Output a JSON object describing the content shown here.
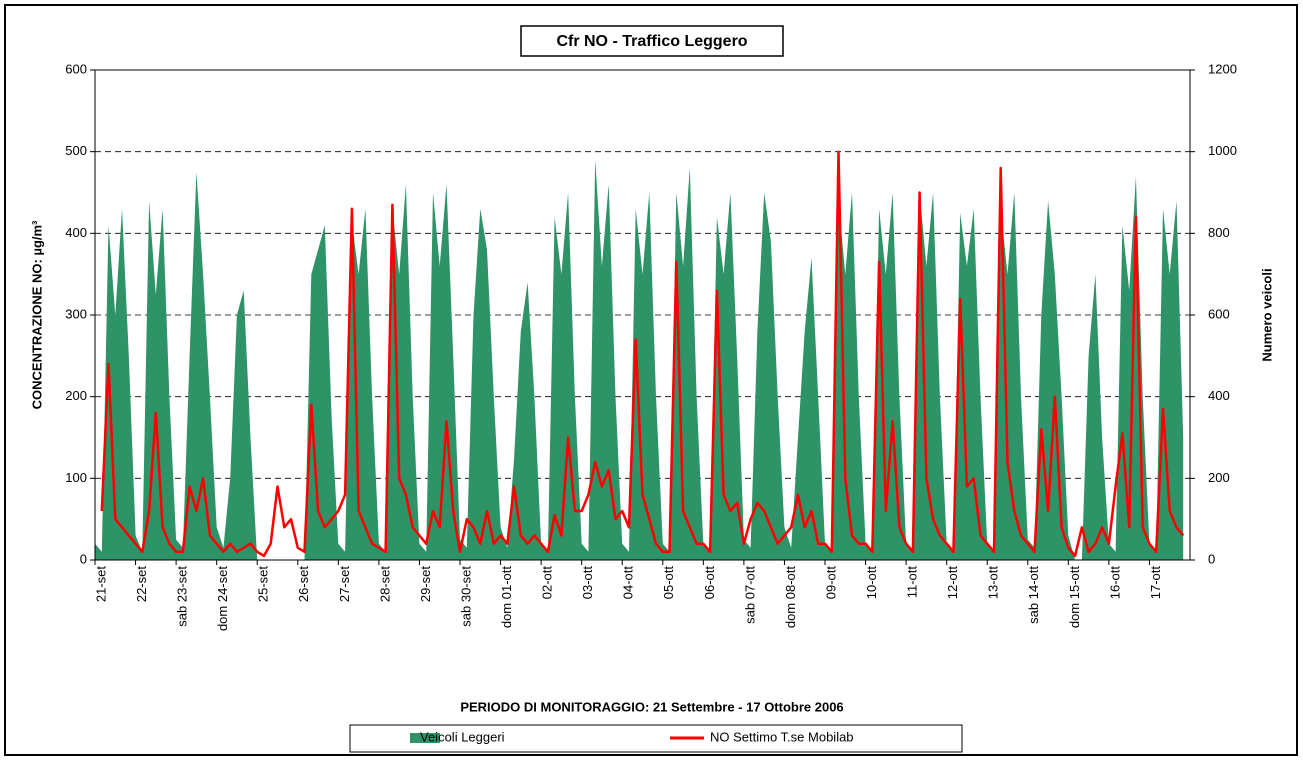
{
  "chart_data": {
    "type": "combo",
    "title": "Cfr NO - Traffico Leggero",
    "xlabel": "PERIODO DI MONITORAGGIO: 21 Settembre - 17 Ottobre 2006",
    "ylabel": "CONCENTRAZIONE NO:  µg/m³",
    "y2label": "Numero veicoli",
    "categories": [
      "21-set",
      "22-set",
      "sab 23-set",
      "dom 24-set",
      "25-set",
      "26-set",
      "27-set",
      "28-set",
      "29-set",
      "sab 30-set",
      "dom 01-ott",
      "02-ott",
      "03-ott",
      "04-ott",
      "05-ott",
      "06-ott",
      "sab 07-ott",
      "dom 08-ott",
      "09-ott",
      "10-ott",
      "11-ott",
      "12-ott",
      "13-ott",
      "sab 14-ott",
      "dom 15-ott",
      "16-ott",
      "17-ott"
    ],
    "ylim": [
      0,
      600
    ],
    "yticks": [
      0,
      100,
      200,
      300,
      400,
      500,
      600
    ],
    "y2lim": [
      0,
      1200
    ],
    "y2ticks": [
      0,
      200,
      400,
      600,
      800,
      1000,
      1200
    ],
    "grid": true,
    "series": [
      {
        "name": "Veicoli Leggeri",
        "type": "area",
        "axis": "y2",
        "color": "#2e9468",
        "values": [
          [
            40,
            20,
            820,
            600,
            860,
            500
          ],
          [
            60,
            20,
            880,
            650,
            860,
            400
          ],
          [
            50,
            30,
            500,
            950,
            700,
            400
          ],
          [
            80,
            30,
            200,
            600,
            660,
            300
          ],
          [
            0,
            0,
            0,
            0,
            0,
            0
          ],
          [
            0,
            0,
            700,
            760,
            820,
            350
          ],
          [
            40,
            20,
            830,
            700,
            860,
            400
          ],
          [
            40,
            20,
            860,
            700,
            920,
            400
          ],
          [
            40,
            20,
            900,
            720,
            920,
            500
          ],
          [
            50,
            30,
            600,
            860,
            760,
            400
          ],
          [
            80,
            30,
            250,
            560,
            680,
            400
          ],
          [
            40,
            20,
            840,
            700,
            900,
            400
          ],
          [
            40,
            20,
            980,
            720,
            920,
            400
          ],
          [
            40,
            20,
            860,
            700,
            900,
            400
          ],
          [
            40,
            20,
            900,
            720,
            960,
            400
          ],
          [
            40,
            20,
            840,
            700,
            900,
            500
          ],
          [
            50,
            30,
            560,
            900,
            780,
            400
          ],
          [
            80,
            30,
            300,
            560,
            740,
            400
          ],
          [
            40,
            20,
            880,
            700,
            900,
            400
          ],
          [
            40,
            20,
            860,
            700,
            900,
            400
          ],
          [
            40,
            20,
            900,
            720,
            900,
            400
          ],
          [
            40,
            20,
            850,
            720,
            860,
            400
          ],
          [
            40,
            20,
            860,
            700,
            900,
            400
          ],
          [
            50,
            30,
            600,
            880,
            700,
            400
          ],
          [
            60,
            0,
            0,
            500,
            700,
            300
          ],
          [
            40,
            20,
            820,
            660,
            940,
            400
          ],
          [
            40,
            20,
            860,
            700,
            880,
            300
          ]
        ]
      },
      {
        "name": "NO Settimo T.se Mobilab",
        "type": "line",
        "color": "#ff0000",
        "values": [
          [
            null,
            60,
            240,
            50,
            40,
            30
          ],
          [
            20,
            10,
            60,
            180,
            40,
            20
          ],
          [
            10,
            10,
            90,
            60,
            100,
            30
          ],
          [
            20,
            10,
            20,
            10,
            15,
            20
          ],
          [
            10,
            5,
            20,
            90,
            40,
            50
          ],
          [
            15,
            10,
            190,
            60,
            40,
            50
          ],
          [
            60,
            80,
            430,
            60,
            40,
            20
          ],
          [
            15,
            10,
            435,
            100,
            80,
            40
          ],
          [
            30,
            20,
            60,
            40,
            170,
            60
          ],
          [
            10,
            50,
            40,
            20,
            60,
            20
          ],
          [
            30,
            20,
            90,
            30,
            20,
            30
          ],
          [
            20,
            10,
            55,
            30,
            150,
            60
          ],
          [
            60,
            80,
            120,
            90,
            110,
            50
          ],
          [
            60,
            40,
            270,
            80,
            50,
            20
          ],
          [
            10,
            10,
            365,
            60,
            40,
            20
          ],
          [
            20,
            10,
            330,
            80,
            60,
            70
          ],
          [
            20,
            50,
            70,
            60,
            40,
            20
          ],
          [
            30,
            40,
            80,
            40,
            60,
            20
          ],
          [
            20,
            10,
            500,
            100,
            30,
            20
          ],
          [
            20,
            10,
            365,
            60,
            170,
            40
          ],
          [
            20,
            10,
            450,
            100,
            50,
            30
          ],
          [
            20,
            10,
            320,
            90,
            100,
            30
          ],
          [
            20,
            10,
            480,
            120,
            60,
            30
          ],
          [
            20,
            10,
            160,
            60,
            200,
            40
          ],
          [
            15,
            5,
            40,
            10,
            20,
            40
          ],
          [
            20,
            90,
            155,
            40,
            420,
            40
          ],
          [
            20,
            10,
            185,
            60,
            40,
            30
          ]
        ]
      }
    ]
  }
}
